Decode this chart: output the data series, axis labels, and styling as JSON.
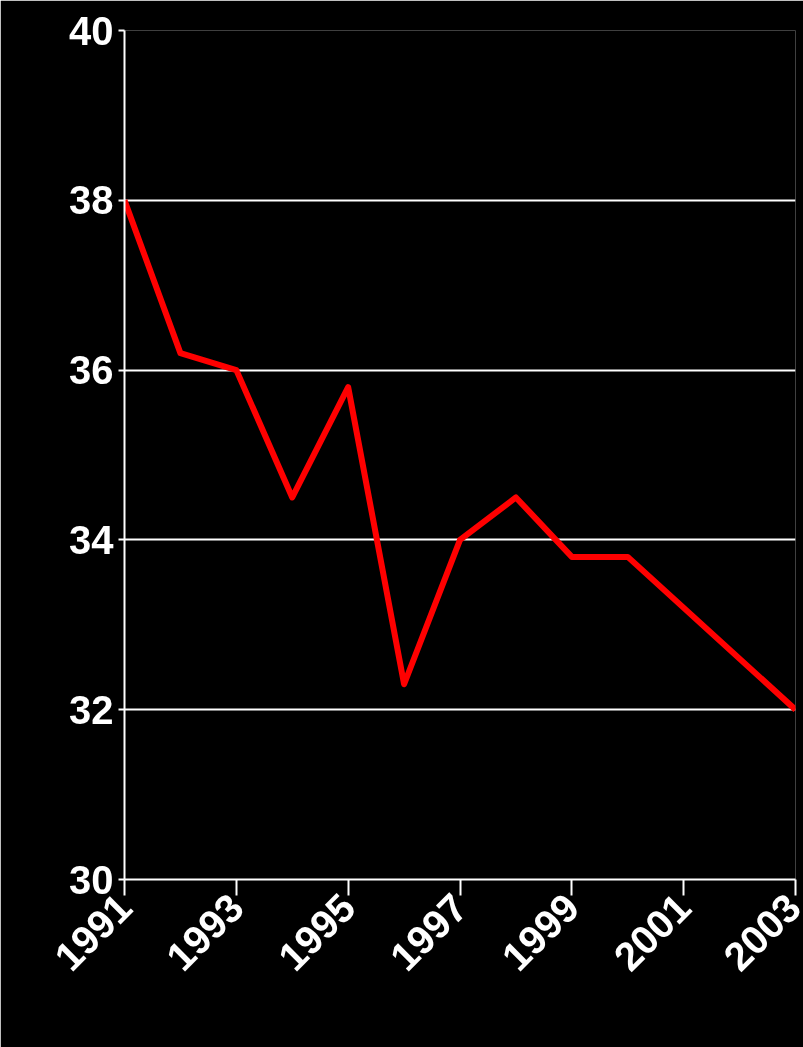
{
  "chart_data": {
    "type": "line",
    "x": [
      1991,
      1992,
      1993,
      1994,
      1995,
      1996,
      1997,
      1998,
      1999,
      2000,
      2003
    ],
    "series": [
      {
        "color": "#ff0000",
        "values": [
          38,
          36.2,
          36,
          34.5,
          35.8,
          32.3,
          34,
          34.5,
          33.8,
          33.8,
          32
        ]
      }
    ],
    "xlim": [
      1991,
      2003
    ],
    "xticks": [
      1991,
      1993,
      1995,
      1997,
      1999,
      2001,
      2003
    ],
    "ylim": [
      30,
      40
    ],
    "yticks": [
      30,
      32,
      34,
      36,
      38,
      40
    ],
    "grid": "y",
    "marker": "none",
    "line_style": "solid"
  }
}
